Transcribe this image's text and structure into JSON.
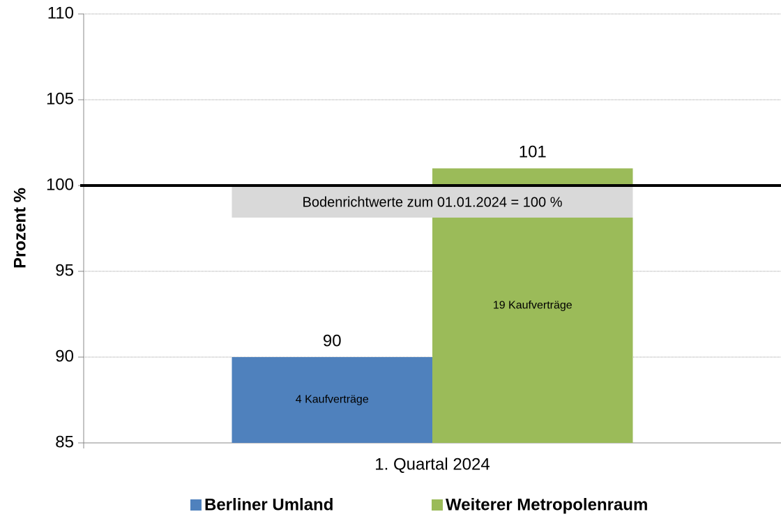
{
  "chart_data": {
    "type": "bar",
    "categories": [
      "1. Quartal 2024"
    ],
    "series": [
      {
        "name": "Berliner Umland",
        "color": "#4f81bd",
        "values": [
          90
        ],
        "bar_labels": [
          "4 Kaufverträge"
        ]
      },
      {
        "name": "Weiterer Metropolenraum",
        "color": "#9bbb59",
        "values": [
          101
        ],
        "bar_labels": [
          "19 Kaufverträge"
        ]
      }
    ],
    "ylabel": "Prozent %",
    "ylim": [
      85,
      110
    ],
    "yticks": [
      85,
      90,
      95,
      100,
      105,
      110
    ],
    "grid": true,
    "reference_line": {
      "value": 100,
      "label": "Bodenrichtwerte zum 01.01.2024 = 100 %"
    },
    "legend": "bottom"
  }
}
